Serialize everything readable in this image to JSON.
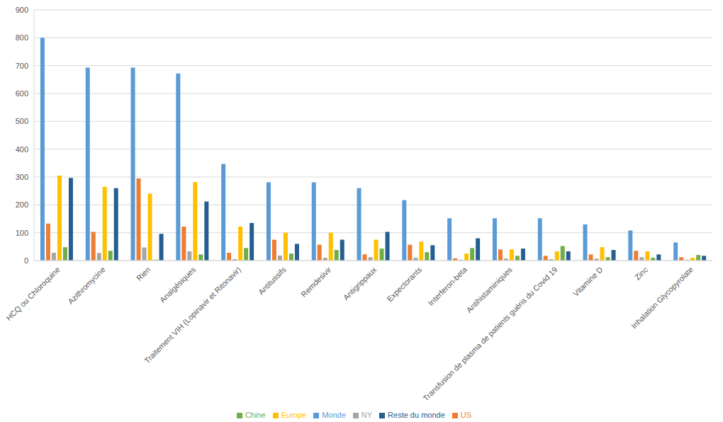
{
  "chart_data": {
    "type": "bar",
    "categories": [
      "HCQ ou Chloroquine",
      "Azithromycine",
      "Rien",
      "Analgésiques",
      "Traitement VIH (Lopinavir et Ritonavir)",
      "Antitussifs",
      "Remdesivir",
      "Antigrippaux",
      "Expectorants",
      "Interferon-beta",
      "Antihistaminiques",
      "Transfusion de plasma de patients guéris du Covid 19",
      "Vitamine D",
      "Zinc",
      "Inhalation Glycopyrolate"
    ],
    "series": [
      {
        "name": "Monde",
        "color": "#5B9BD5",
        "values": [
          800,
          693,
          693,
          672,
          347,
          281,
          281,
          260,
          217,
          152,
          152,
          152,
          130,
          108,
          65
        ]
      },
      {
        "name": "US",
        "color": "#ED7D31",
        "values": [
          133,
          103,
          295,
          122,
          28,
          75,
          57,
          22,
          57,
          8,
          40,
          17,
          22,
          35,
          12
        ]
      },
      {
        "name": "NY",
        "color": "#A5A5A5",
        "values": [
          28,
          27,
          47,
          33,
          5,
          18,
          10,
          12,
          10,
          3,
          7,
          5,
          7,
          12,
          3
        ]
      },
      {
        "name": "Europe",
        "color": "#FFC000",
        "values": [
          305,
          265,
          240,
          282,
          122,
          100,
          100,
          75,
          68,
          25,
          40,
          33,
          48,
          33,
          10
        ]
      },
      {
        "name": "Chine",
        "color": "#70AD47",
        "values": [
          48,
          35,
          3,
          22,
          45,
          25,
          38,
          43,
          30,
          45,
          17,
          52,
          12,
          10,
          20
        ]
      },
      {
        "name": "Reste du monde",
        "color": "#255E91",
        "values": [
          297,
          260,
          96,
          212,
          135,
          60,
          75,
          103,
          55,
          80,
          43,
          33,
          38,
          22,
          17
        ]
      }
    ],
    "ylim": [
      0,
      900
    ],
    "yticks": [
      0,
      100,
      200,
      300,
      400,
      500,
      600,
      700,
      800,
      900
    ],
    "grid": true,
    "legend": "bottom"
  }
}
